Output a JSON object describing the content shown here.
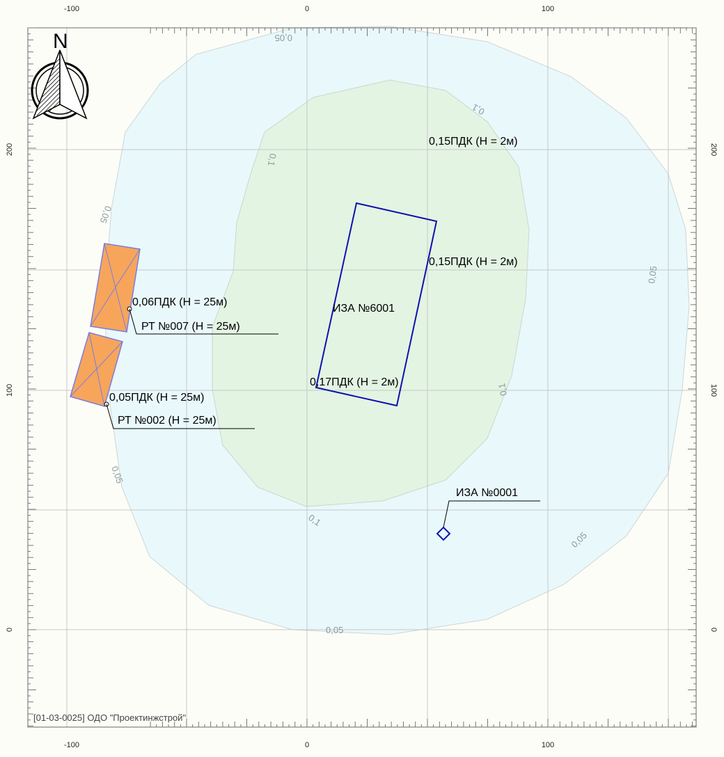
{
  "axes": {
    "x_ticks": [
      "-100",
      "0",
      "100"
    ],
    "y_ticks": [
      "200",
      "100",
      "0"
    ]
  },
  "north_label": "N",
  "isolines": {
    "outer": "0,05",
    "inner": "0,1"
  },
  "sources": [
    {
      "label": "ИЗА №6001"
    },
    {
      "label": "ИЗА №0001"
    }
  ],
  "labels": {
    "c1": "0,15ПДК (H = 2м)",
    "c2": "0,15ПДК (H = 2м)",
    "c3": "0,17ПДК (H = 2м)",
    "rt_upper_conc": "0,06ПДК (H = 25м)",
    "rt_upper_name": "РТ №007 (H = 25м)",
    "rt_lower_conc": "0,05ПДК (H = 25м)",
    "rt_lower_name": "РТ №002 (H = 25м)"
  },
  "stamp": "[01-03-0025] ОДО \"Проектинжстрой\"",
  "colors": {
    "zone_outer": "#e9f8fb",
    "zone_inner": "#e3f4e3",
    "building_fill": "#f6a55b",
    "source_outline": "#1010b0",
    "grid": "#c7c7c7",
    "isoline": "#c8cfcf"
  }
}
